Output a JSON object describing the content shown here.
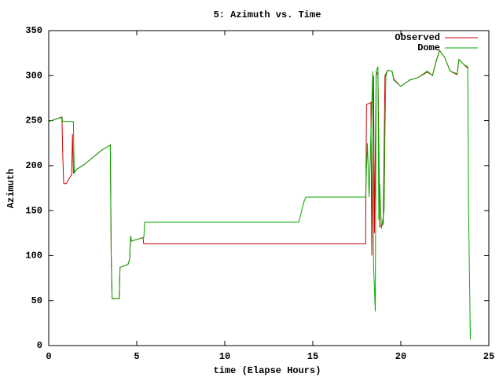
{
  "chart_data": {
    "type": "line",
    "title": "5: Azimuth vs. Time",
    "x_label": "time (Elapse Hours)",
    "y_label": "Azimuth",
    "xlim": [
      0,
      25
    ],
    "xticks": [
      0,
      5,
      10,
      15,
      20,
      25
    ],
    "ylim": [
      0,
      350
    ],
    "yticks": [
      0,
      50,
      100,
      150,
      200,
      250,
      300,
      350
    ],
    "legend": "top-right",
    "grid": false,
    "series": [
      {
        "name": "Observed",
        "color": "#cc0000",
        "x": [
          0,
          0.3,
          0.6,
          0.75,
          0.8,
          0.85,
          1.0,
          1.1,
          1.3,
          1.35,
          1.4,
          1.6,
          2,
          2.5,
          3,
          3.5,
          3.55,
          3.6,
          4,
          4.05,
          4.5,
          4.6,
          4.65,
          4.7,
          5,
          5.35,
          5.4,
          18,
          18.05,
          18.3,
          18.35,
          18.45,
          18.5,
          18.6,
          18.7,
          18.8,
          19.0,
          19.1,
          19.25,
          19.5,
          19.6,
          20,
          20.5,
          21,
          21.5,
          21.8,
          22,
          22.2,
          22.5,
          22.8,
          23.2,
          23.3,
          23.6,
          23.8
        ],
        "values": [
          249,
          251,
          253,
          254,
          210,
          180,
          180,
          184,
          190,
          235,
          192,
          196,
          201,
          209,
          217,
          223,
          100,
          52,
          52,
          87,
          90,
          96,
          122,
          116,
          118,
          120,
          113,
          113,
          268,
          270,
          100,
          300,
          125,
          300,
          305,
          132,
          135,
          300,
          306,
          305,
          296,
          288,
          295,
          298,
          304,
          300,
          316,
          328,
          320,
          305,
          301,
          318,
          312,
          308
        ]
      },
      {
        "name": "Dome",
        "color": "#00aa00",
        "x": [
          0,
          0.3,
          0.6,
          0.75,
          0.8,
          1.4,
          1.45,
          1.6,
          2,
          2.5,
          3,
          3.5,
          3.55,
          3.6,
          4,
          4.05,
          4.5,
          4.6,
          4.65,
          4.7,
          5,
          5.4,
          5.45,
          14.2,
          14.5,
          14.6,
          18,
          18.1,
          18.2,
          18.4,
          18.45,
          18.55,
          18.6,
          18.7,
          18.75,
          18.8,
          18.9,
          19.05,
          19.1,
          19.15,
          19.25,
          19.5,
          19.6,
          20,
          20.5,
          21,
          21.5,
          21.8,
          22,
          22.2,
          22.5,
          22.8,
          23.2,
          23.3,
          23.6,
          23.8,
          23.85,
          23.95
        ],
        "values": [
          249,
          251,
          253,
          253,
          249,
          249,
          192,
          196,
          201,
          209,
          217,
          223,
          100,
          52,
          52,
          87,
          90,
          96,
          122,
          116,
          118,
          120,
          137,
          137,
          160,
          165,
          165,
          225,
          165,
          305,
          90,
          38,
          305,
          310,
          140,
          180,
          130,
          150,
          240,
          300,
          306,
          305,
          295,
          288,
          295,
          298,
          305,
          300,
          315,
          328,
          320,
          305,
          302,
          318,
          312,
          310,
          150,
          7
        ]
      }
    ]
  }
}
